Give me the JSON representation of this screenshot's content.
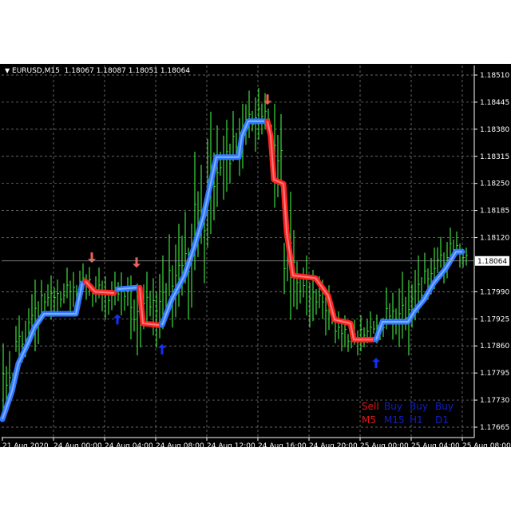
{
  "chart_data": {
    "type": "line",
    "title": "EURUSD,M15",
    "ohlc_header": "1.18067 1.18087 1.18051 1.18064",
    "current_price": "1.18064",
    "ylim": [
      1.17665,
      1.1851
    ],
    "y_ticks": [
      "1.18510",
      "1.18445",
      "1.18380",
      "1.18315",
      "1.18250",
      "1.18185",
      "1.18120",
      "1.18064",
      "1.17990",
      "1.17925",
      "1.17860",
      "1.17795",
      "1.17730",
      "1.17665"
    ],
    "x_ticks": [
      {
        "label": "21 Aug 2020",
        "time": "2020-08-21 20:00"
      },
      {
        "label": "24 Aug 00:00",
        "time": "2020-08-24 00:00"
      },
      {
        "label": "24 Aug 04:00",
        "time": "2020-08-24 04:00"
      },
      {
        "label": "24 Aug 08:00",
        "time": "2020-08-24 08:00"
      },
      {
        "label": "24 Aug 12:00",
        "time": "2020-08-24 12:00"
      },
      {
        "label": "24 Aug 16:00",
        "time": "2020-08-24 16:00"
      },
      {
        "label": "24 Aug 20:00",
        "time": "2020-08-24 20:00"
      },
      {
        "label": "25 Aug 00:00",
        "time": "2020-08-25 00:00"
      },
      {
        "label": "25 Aug 04:00",
        "time": "2020-08-25 04:00"
      },
      {
        "label": "25 Aug 08:00",
        "time": "2020-08-25 08:00"
      }
    ],
    "grid": true,
    "colors": {
      "bars": "#3cdc3c",
      "buy_line": "#2f78ff",
      "sell_line": "#ff2020",
      "sell_arrow": "#f06050",
      "buy_arrow": "#1030ff",
      "legend_sell": "#e01818",
      "legend_buy": "#1020c0"
    },
    "bars_hourly_high_low": [
      [
        "2020-08-21 20:00",
        1.17866,
        1.17684
      ],
      [
        "2020-08-21 21:00",
        1.17933,
        1.17808
      ],
      [
        "2020-08-21 22:00",
        1.18019,
        1.17847
      ],
      [
        "2020-08-21 23:00",
        1.18029,
        1.17923
      ],
      [
        "2020-08-24 00:00",
        1.18029,
        1.17933
      ],
      [
        "2020-08-24 01:00",
        1.18048,
        1.17943
      ],
      [
        "2020-08-24 02:00",
        1.18058,
        1.17971
      ],
      [
        "2020-08-24 03:00",
        1.18048,
        1.17943
      ],
      [
        "2020-08-24 04:00",
        1.18038,
        1.17923
      ],
      [
        "2020-08-24 05:00",
        1.18048,
        1.17933
      ],
      [
        "2020-08-24 06:00",
        1.18029,
        1.17837
      ],
      [
        "2020-08-24 07:00",
        1.18038,
        1.17885
      ],
      [
        "2020-08-24 08:00",
        1.18077,
        1.17856
      ],
      [
        "2020-08-24 09:00",
        1.18153,
        1.17904
      ],
      [
        "2020-08-24 10:00",
        1.18211,
        1.17923
      ],
      [
        "2020-08-24 11:00",
        1.18326,
        1.1801
      ],
      [
        "2020-08-24 12:00",
        1.18422,
        1.18096
      ],
      [
        "2020-08-24 13:00",
        1.18403,
        1.18211
      ],
      [
        "2020-08-24 14:00",
        1.18441,
        1.18268
      ],
      [
        "2020-08-24 15:00",
        1.18489,
        1.18326
      ],
      [
        "2020-08-24 16:00",
        1.18479,
        1.18355
      ],
      [
        "2020-08-24 17:00",
        1.18441,
        1.18192
      ],
      [
        "2020-08-24 18:00",
        1.1823,
        1.17923
      ],
      [
        "2020-08-24 19:00",
        1.18077,
        1.17933
      ],
      [
        "2020-08-24 20:00",
        1.18058,
        1.17904
      ],
      [
        "2020-08-24 21:00",
        1.18019,
        1.17885
      ],
      [
        "2020-08-24 22:00",
        1.17943,
        1.17847
      ],
      [
        "2020-08-24 23:00",
        1.17923,
        1.17837
      ],
      [
        "2020-08-25 00:00",
        1.17943,
        1.17847
      ],
      [
        "2020-08-25 01:00",
        1.17943,
        1.17866
      ],
      [
        "2020-08-25 02:00",
        1.18,
        1.17875
      ],
      [
        "2020-08-25 03:00",
        1.18038,
        1.17837
      ],
      [
        "2020-08-25 04:00",
        1.18077,
        1.17904
      ],
      [
        "2020-08-25 05:00",
        1.18096,
        1.17971
      ],
      [
        "2020-08-25 06:00",
        1.18134,
        1.1801
      ],
      [
        "2020-08-25 07:00",
        1.18144,
        1.18048
      ],
      [
        "2020-08-25 08:00",
        1.18096,
        1.18048
      ]
    ],
    "trend_line_segments": [
      {
        "signal": "buy",
        "points": [
          [
            "2020-08-21 20:00",
            1.17684
          ],
          [
            "2020-08-21 20:45",
            1.17751
          ],
          [
            "2020-08-21 21:15",
            1.17818
          ],
          [
            "2020-08-21 22:00",
            1.17866
          ],
          [
            "2020-08-21 22:30",
            1.17904
          ],
          [
            "2020-08-21 23:15",
            1.17937
          ],
          [
            "2020-08-24 01:45",
            1.17937
          ],
          [
            "2020-08-24 02:15",
            1.1801
          ]
        ]
      },
      {
        "signal": "sell",
        "points": [
          [
            "2020-08-24 02:30",
            1.18015
          ],
          [
            "2020-08-24 03:15",
            1.1799
          ],
          [
            "2020-08-24 04:45",
            1.17987
          ]
        ]
      },
      {
        "signal": "buy",
        "points": [
          [
            "2020-08-24 05:00",
            1.17996
          ],
          [
            "2020-08-24 06:30",
            1.18
          ]
        ]
      },
      {
        "signal": "sell",
        "points": [
          [
            "2020-08-24 06:45",
            1.18
          ],
          [
            "2020-08-24 07:00",
            1.17914
          ],
          [
            "2020-08-24 08:15",
            1.1791
          ]
        ]
      },
      {
        "signal": "buy",
        "points": [
          [
            "2020-08-24 08:30",
            1.1791
          ],
          [
            "2020-08-24 09:15",
            1.17971
          ],
          [
            "2020-08-24 10:15",
            1.18029
          ],
          [
            "2020-08-24 11:00",
            1.18096
          ],
          [
            "2020-08-24 11:45",
            1.18173
          ],
          [
            "2020-08-24 12:45",
            1.18313
          ],
          [
            "2020-08-24 14:30",
            1.18313
          ],
          [
            "2020-08-24 14:45",
            1.18364
          ],
          [
            "2020-08-24 15:15",
            1.18399
          ],
          [
            "2020-08-24 16:30",
            1.18399
          ]
        ]
      },
      {
        "signal": "sell",
        "points": [
          [
            "2020-08-24 16:45",
            1.18399
          ],
          [
            "2020-08-24 17:00",
            1.18364
          ],
          [
            "2020-08-24 17:15",
            1.18259
          ],
          [
            "2020-08-24 18:00",
            1.18249
          ],
          [
            "2020-08-24 18:15",
            1.18134
          ],
          [
            "2020-08-24 18:45",
            1.18029
          ],
          [
            "2020-08-24 20:30",
            1.18023
          ],
          [
            "2020-08-24 21:30",
            1.17981
          ],
          [
            "2020-08-24 22:00",
            1.17923
          ],
          [
            "2020-08-24 23:15",
            1.17914
          ],
          [
            "2020-08-24 23:30",
            1.17875
          ],
          [
            "2020-08-25 01:00",
            1.17875
          ]
        ]
      },
      {
        "signal": "buy",
        "points": [
          [
            "2020-08-25 01:15",
            1.17875
          ],
          [
            "2020-08-25 01:45",
            1.17918
          ],
          [
            "2020-08-25 03:45",
            1.17918
          ],
          [
            "2020-08-25 04:15",
            1.17943
          ],
          [
            "2020-08-25 05:00",
            1.17971
          ],
          [
            "2020-08-25 05:45",
            1.1801
          ],
          [
            "2020-08-25 06:45",
            1.18048
          ],
          [
            "2020-08-25 07:30",
            1.18086
          ],
          [
            "2020-08-25 08:00",
            1.18086
          ]
        ]
      }
    ],
    "arrows": [
      {
        "signal": "sell",
        "time": "2020-08-24 03:00",
        "price": 1.18073
      },
      {
        "signal": "sell",
        "time": "2020-08-24 06:30",
        "price": 1.18061
      },
      {
        "signal": "sell",
        "time": "2020-08-24 16:45",
        "price": 1.18452
      },
      {
        "signal": "buy",
        "time": "2020-08-24 05:00",
        "price": 1.17923
      },
      {
        "signal": "buy",
        "time": "2020-08-24 08:30",
        "price": 1.17851
      },
      {
        "signal": "buy",
        "time": "2020-08-25 01:15",
        "price": 1.17818
      }
    ],
    "legend": {
      "signals": [
        {
          "text": "Sell",
          "signal": "sell"
        },
        {
          "text": "Buy",
          "signal": "buy"
        },
        {
          "text": "Buy",
          "signal": "buy"
        },
        {
          "text": "Buy",
          "signal": "buy"
        }
      ],
      "timeframes": [
        {
          "text": "M5",
          "signal": "sell"
        },
        {
          "text": "M15",
          "signal": "buy"
        },
        {
          "text": "H1",
          "signal": "buy"
        },
        {
          "text": "D1",
          "signal": "buy"
        }
      ],
      "placement": "bottom-right"
    }
  }
}
